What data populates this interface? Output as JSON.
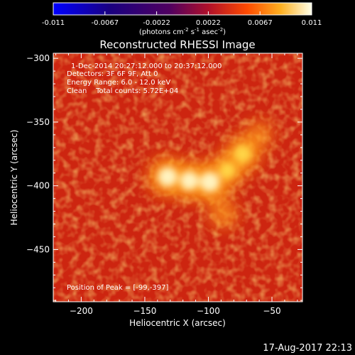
{
  "chart_data": {
    "type": "heatmap",
    "title": "Reconstructed RHESSI Image",
    "xlabel": "Heliocentric X (arcsec)",
    "ylabel": "Heliocentric Y (arcsec)",
    "xlim": [
      -222,
      -26
    ],
    "ylim": [
      -491,
      -296
    ],
    "xticks": [
      -200,
      -150,
      -100,
      -50
    ],
    "yticks": [
      -300,
      -350,
      -400,
      -450
    ],
    "colorbar": {
      "min": -0.011,
      "max": 0.011,
      "ticks": [
        "-0.011",
        "-0.0067",
        "-0.0022",
        "0.0022",
        "0.0067",
        "0.011"
      ],
      "unit_prefix": "(photons cm",
      "unit_exp1": "-2",
      "unit_mid": " s",
      "unit_exp2": "-1",
      "unit_mid2": " asec",
      "unit_exp3": "-2",
      "unit_suffix": ")"
    },
    "annotations": {
      "time_range": "1-Dec-2014 20:27:12.000 to 20:37:12.000",
      "detectors": "Detectors: 3F 6F 9F, Att 0",
      "energy": "Energy Range: 6.0 - 12.0 keV",
      "clean": "Clean    Total counts: 5.72E+04",
      "peak": "Position of Peak = [-99,-397]"
    },
    "sources": [
      {
        "x": -132,
        "y": -393,
        "level": 0.95
      },
      {
        "x": -99,
        "y": -397,
        "level": 1.0
      },
      {
        "x": -115,
        "y": -396,
        "level": 0.9
      },
      {
        "x": -73,
        "y": -375,
        "level": 0.8
      },
      {
        "x": -85,
        "y": -388,
        "level": 0.7
      },
      {
        "x": -88,
        "y": -422,
        "level": 0.45
      },
      {
        "x": -60,
        "y": -360,
        "level": 0.4
      }
    ]
  },
  "footer": {
    "timestamp": "17-Aug-2017 22:13"
  },
  "colors": {
    "background": "#000000",
    "text": "#ffffff",
    "colormap": [
      "#0000ff",
      "#000000",
      "#6a0a80",
      "#d01818",
      "#ff6a00",
      "#ffcc22",
      "#ffffff"
    ]
  }
}
